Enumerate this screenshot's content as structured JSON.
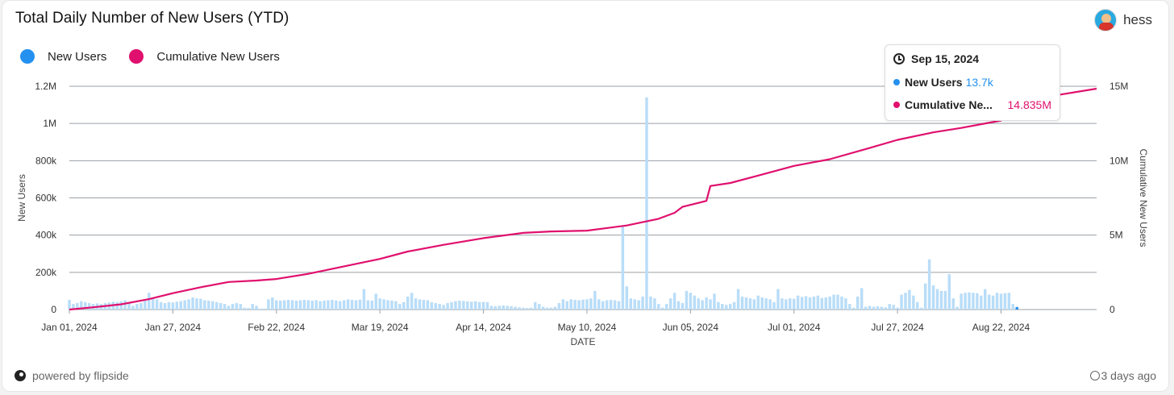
{
  "header": {
    "title": "Total Daily Number of New Users (YTD)",
    "author": "hess"
  },
  "legend": {
    "items": [
      {
        "label": "New Users",
        "color": "#2491f0"
      },
      {
        "label": "Cumulative New Users",
        "color": "#e0106e"
      }
    ]
  },
  "tooltip": {
    "date": "Sep 15, 2024",
    "new_users_label": "New Users",
    "new_users_value": "13.7k",
    "cumulative_label": "Cumulative Ne...",
    "cumulative_value": "14.835M"
  },
  "footer": {
    "powered_by": "powered by flipside",
    "updated": "3 days ago"
  },
  "icons": {
    "clock": "clock-icon",
    "check": "check-circle-icon",
    "flipside": "flipside-logo-icon",
    "avatar": "avatar"
  },
  "colors": {
    "bar": "#b9ddf8",
    "bar_highlight": "#2491f0",
    "line": "#e0106e",
    "grid": "#9aa0a6"
  },
  "chart_data": {
    "type": "bar",
    "xlabel": "DATE",
    "ylabel_left": "New Users",
    "ylabel_right": "Cumulative New Users",
    "x_ticks": [
      "Jan 01, 2024",
      "Jan 27, 2024",
      "Feb 22, 2024",
      "Mar 19, 2024",
      "Apr 14, 2024",
      "May 10, 2024",
      "Jun 05, 2024",
      "Jul 01, 2024",
      "Jul 27, 2024",
      "Aug 22, 2024"
    ],
    "y_left_ticks": [
      "0",
      "200k",
      "400k",
      "600k",
      "800k",
      "1M",
      "1.2M"
    ],
    "y_left_range": [
      0,
      1200000
    ],
    "y_right_ticks": [
      "0",
      "5M",
      "10M",
      "15M"
    ],
    "y_right_range": [
      0,
      15000000
    ],
    "x_range": [
      "2024-01-01",
      "2024-09-15"
    ],
    "highlight_date": "2024-09-15",
    "series": [
      {
        "name": "New Users",
        "type": "bar",
        "daily_values": [
          52000,
          30000,
          35000,
          45000,
          40000,
          35000,
          30000,
          33000,
          30000,
          35000,
          38000,
          42000,
          40000,
          45000,
          50000,
          40000,
          20000,
          30000,
          35000,
          50000,
          90000,
          60000,
          55000,
          40000,
          35000,
          40000,
          38000,
          42000,
          45000,
          50000,
          55000,
          65000,
          60000,
          58000,
          50000,
          48000,
          45000,
          40000,
          35000,
          30000,
          20000,
          30000,
          35000,
          30000,
          10000,
          8000,
          30000,
          20000,
          5000,
          5000,
          55000,
          65000,
          50000,
          48000,
          50000,
          52000,
          50000,
          48000,
          50000,
          52000,
          50000,
          48000,
          50000,
          45000,
          48000,
          50000,
          52000,
          48000,
          45000,
          50000,
          55000,
          52000,
          50000,
          53000,
          110000,
          50000,
          48000,
          85000,
          60000,
          55000,
          50000,
          48000,
          45000,
          30000,
          40000,
          70000,
          90000,
          60000,
          55000,
          52000,
          50000,
          40000,
          35000,
          30000,
          25000,
          35000,
          40000,
          45000,
          48000,
          46000,
          44000,
          42000,
          44000,
          40000,
          41000,
          40000,
          20000,
          18000,
          20000,
          22000,
          20000,
          18000,
          15000,
          12000,
          10000,
          8000,
          10000,
          40000,
          30000,
          15000,
          10000,
          10000,
          15000,
          35000,
          55000,
          45000,
          55000,
          52000,
          50000,
          53000,
          55000,
          60000,
          100000,
          55000,
          45000,
          50000,
          52000,
          50000,
          45000,
          450000,
          125000,
          60000,
          55000,
          50000,
          70000,
          1140000,
          70000,
          60000,
          30000,
          10000,
          30000,
          60000,
          90000,
          45000,
          35000,
          100000,
          90000,
          75000,
          60000,
          50000,
          65000,
          55000,
          85000,
          40000,
          30000,
          25000,
          30000,
          40000,
          110000,
          70000,
          65000,
          60000,
          55000,
          75000,
          65000,
          60000,
          55000,
          40000,
          110000,
          60000,
          55000,
          60000,
          58000,
          75000,
          68000,
          72000,
          65000,
          70000,
          75000,
          62000,
          65000,
          70000,
          80000,
          80000,
          70000,
          60000,
          30000,
          10000,
          70000,
          115000,
          15000,
          20000,
          15000,
          18000,
          15000,
          12000,
          30000,
          25000,
          10000,
          80000,
          90000,
          105000,
          75000,
          40000,
          10000,
          140000,
          270000,
          130000,
          110000,
          100000,
          100000,
          190000,
          60000,
          15000,
          85000,
          90000,
          92000,
          90000,
          88000,
          75000,
          110000,
          80000,
          75000,
          90000,
          85000,
          88000,
          90000,
          30000,
          13700
        ]
      },
      {
        "name": "Cumulative New Users",
        "type": "line",
        "points": [
          [
            "2024-01-01",
            0
          ],
          [
            "2024-01-07",
            150000
          ],
          [
            "2024-01-14",
            350000
          ],
          [
            "2024-01-21",
            700000
          ],
          [
            "2024-01-27",
            1100000
          ],
          [
            "2024-02-03",
            1500000
          ],
          [
            "2024-02-10",
            1850000
          ],
          [
            "2024-02-17",
            1950000
          ],
          [
            "2024-02-22",
            2050000
          ],
          [
            "2024-03-01",
            2400000
          ],
          [
            "2024-03-10",
            2900000
          ],
          [
            "2024-03-19",
            3400000
          ],
          [
            "2024-03-26",
            3900000
          ],
          [
            "2024-04-04",
            4350000
          ],
          [
            "2024-04-14",
            4800000
          ],
          [
            "2024-04-24",
            5150000
          ],
          [
            "2024-05-01",
            5250000
          ],
          [
            "2024-05-10",
            5300000
          ],
          [
            "2024-05-20",
            5650000
          ],
          [
            "2024-05-28",
            6100000
          ],
          [
            "2024-06-01",
            6500000
          ],
          [
            "2024-06-03",
            6900000
          ],
          [
            "2024-06-09",
            7300000
          ],
          [
            "2024-06-10",
            8300000
          ],
          [
            "2024-06-15",
            8500000
          ],
          [
            "2024-06-22",
            9000000
          ],
          [
            "2024-07-01",
            9650000
          ],
          [
            "2024-07-10",
            10100000
          ],
          [
            "2024-07-20",
            10850000
          ],
          [
            "2024-07-27",
            11400000
          ],
          [
            "2024-08-05",
            11900000
          ],
          [
            "2024-08-12",
            12200000
          ],
          [
            "2024-08-22",
            12700000
          ],
          [
            "2024-08-27",
            13700000
          ],
          [
            "2024-09-05",
            14400000
          ],
          [
            "2024-09-15",
            14835000
          ]
        ]
      }
    ]
  }
}
